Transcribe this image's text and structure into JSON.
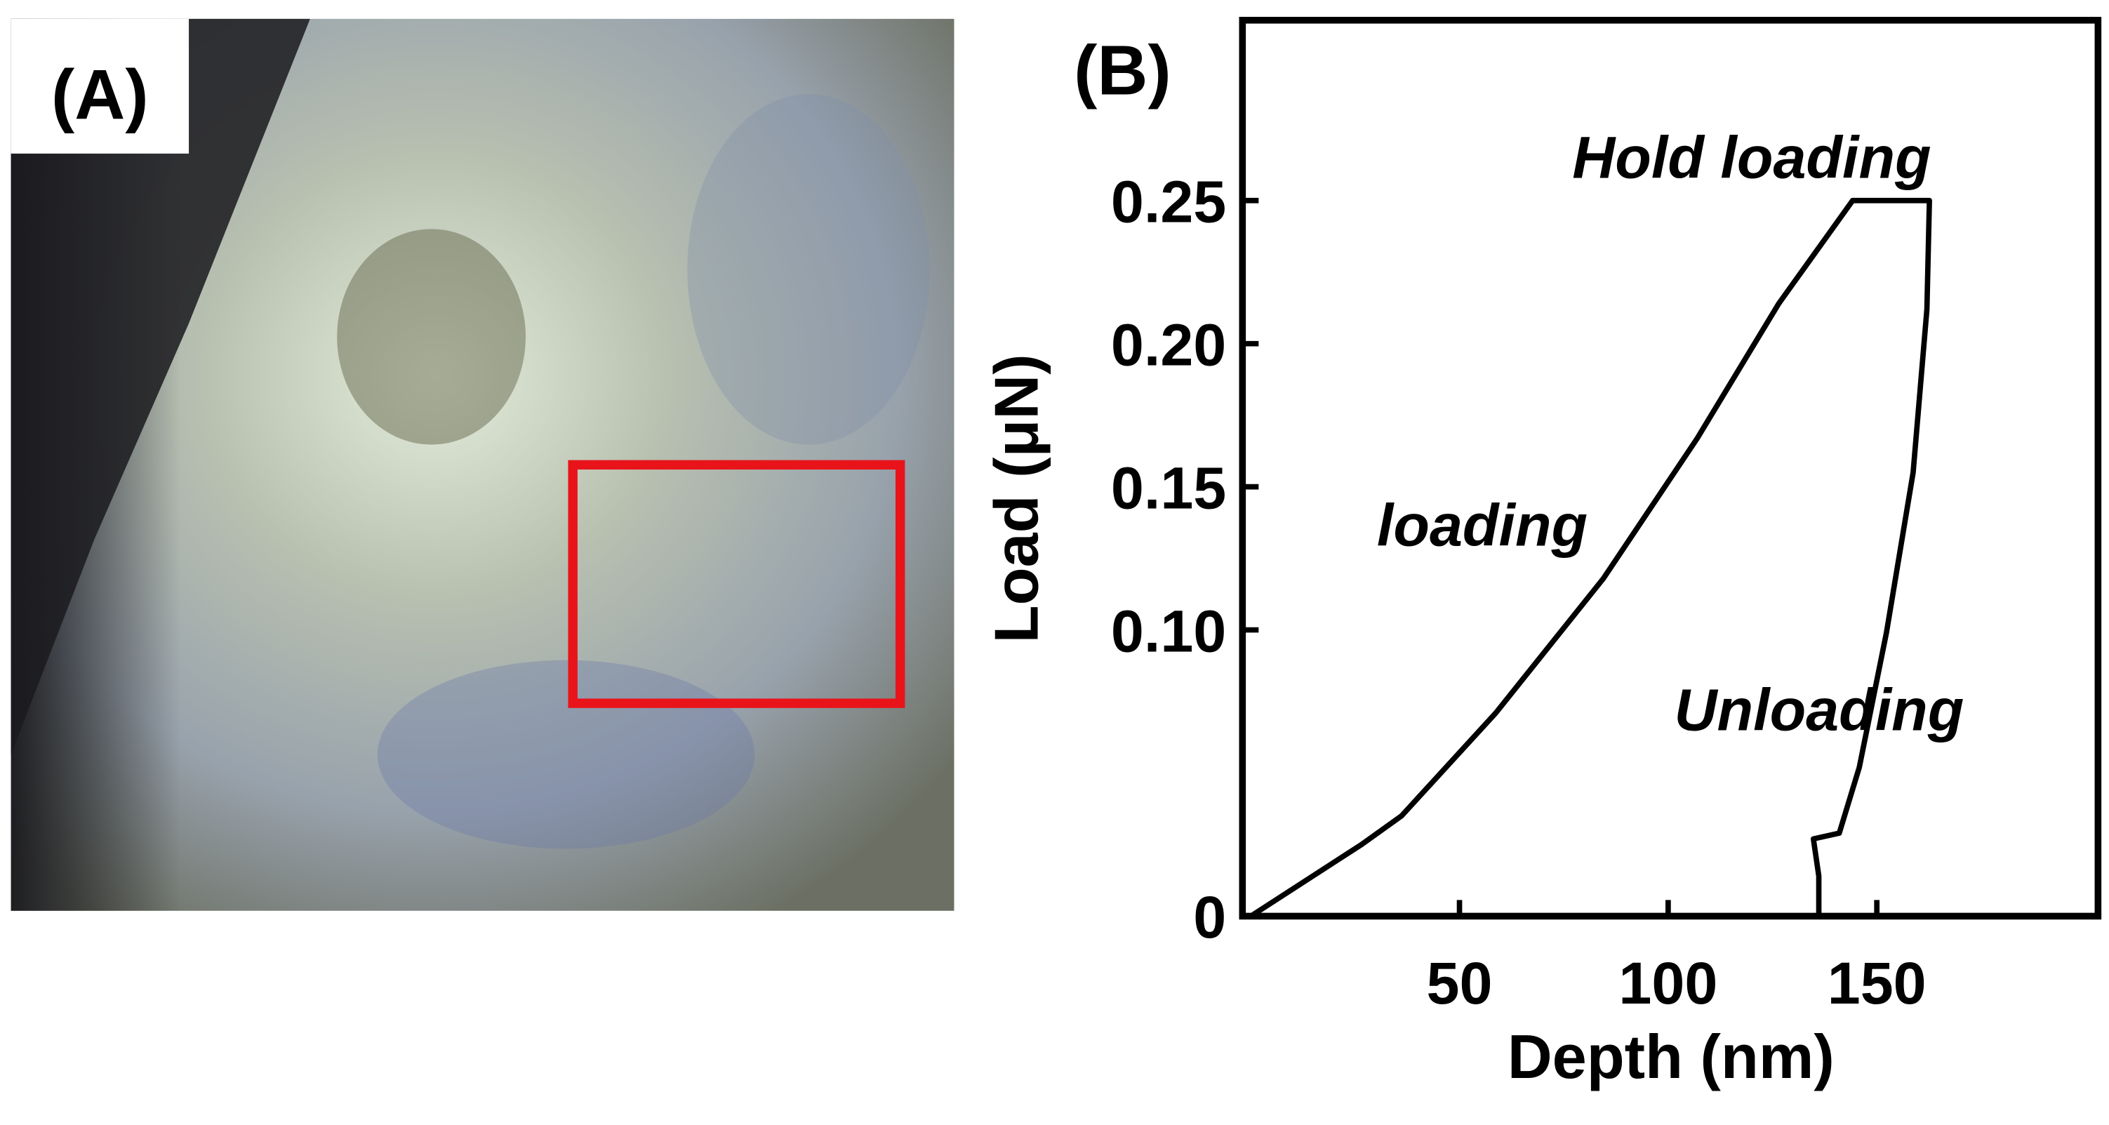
{
  "panel_labels": [
    "(A)",
    "(B)"
  ],
  "chart_data": {
    "type": "line",
    "x_label": "Depth (nm)",
    "y_label": "Load (μN)",
    "x": [
      0,
      26.5,
      36.1,
      58.7,
      84.5,
      107,
      126.5,
      144.2,
      162.6,
      162,
      158.7,
      152.3,
      145.8,
      141,
      134.8,
      136.1,
      136.1
    ],
    "series": [
      {
        "color": "#000000",
        "values": [
          0,
          0.025,
          0.035,
          0.071,
          0.118,
          0.167,
          0.214,
          0.25,
          0.25,
          0.212,
          0.155,
          0.099,
          0.052,
          0.029,
          0.027,
          0.014,
          0
        ]
      }
    ],
    "xlim": [
      -2,
      203
    ],
    "ylim": [
      0,
      0.313
    ],
    "xticks": [
      50,
      100,
      150
    ],
    "yticks": [
      0,
      {
        "value": 0.1,
        "label": "0.10"
      },
      0.15,
      {
        "value": 0.2,
        "label": "0.20"
      },
      0.25
    ],
    "annotations": [
      "Hold loading",
      "loading",
      "Unloading"
    ]
  }
}
